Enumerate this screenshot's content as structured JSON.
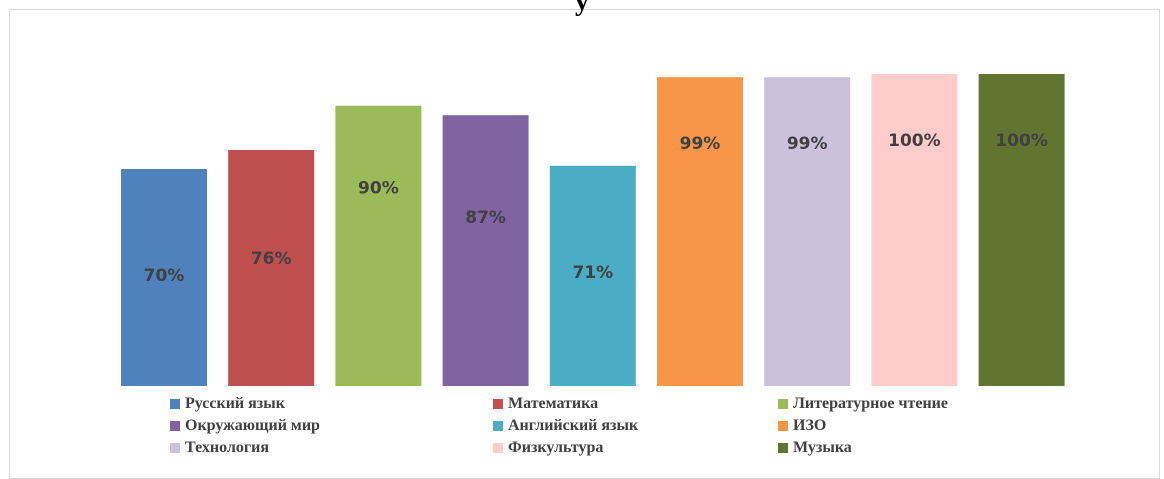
{
  "chart_data": {
    "type": "bar",
    "title": "у",
    "categories": [
      "Русский язык",
      "Математика",
      "Литературное чтение",
      "Окружающий мир",
      "Английский язык",
      "ИЗО",
      "Технология",
      "Физкультура",
      "Музыка"
    ],
    "values": [
      70,
      76,
      90,
      87,
      71,
      99,
      99,
      100,
      100
    ],
    "data_labels": [
      "70%",
      "76%",
      "90%",
      "87%",
      "71%",
      "99%",
      "99%",
      "100%",
      "100%"
    ],
    "colors": [
      "#4f81bd",
      "#c0504d",
      "#9bbb59",
      "#8064a2",
      "#4bacc6",
      "#f79646",
      "#ccc1da",
      "#ffcccc",
      "#617530"
    ],
    "ylim": [
      0,
      100
    ],
    "grid": false,
    "legend_position": "bottom"
  }
}
